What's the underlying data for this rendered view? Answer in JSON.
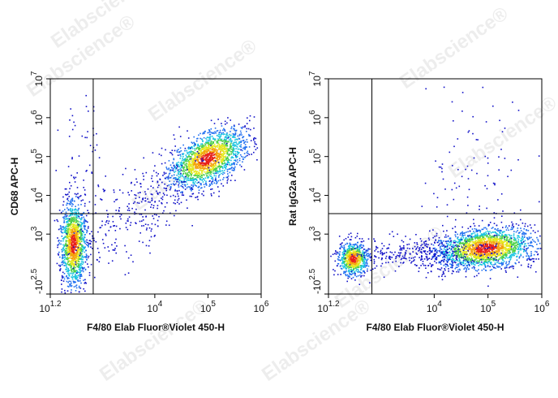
{
  "watermark": "Elabscience®",
  "chart_data": [
    {
      "type": "scatter",
      "xlabel": "F4/80 Elab Fluor®Violet 450-H",
      "ylabel": "CD68 APC-H",
      "xscale": "log",
      "yscale": "log",
      "xlim": [
        15.85,
        1000000
      ],
      "ylim": [
        -316.2,
        10000000
      ],
      "xticks": [
        {
          "value": 15.85,
          "label": "10",
          "sup": "1.2"
        },
        {
          "value": 10000,
          "label": "10",
          "sup": "4"
        },
        {
          "value": 100000,
          "label": "10",
          "sup": "5"
        },
        {
          "value": 1000000,
          "label": "10",
          "sup": "6"
        }
      ],
      "yticks": [
        {
          "value": -316.2,
          "label": "-10",
          "sup": "2.5"
        },
        {
          "value": 1000,
          "label": "10",
          "sup": "3"
        },
        {
          "value": 10000,
          "label": "10",
          "sup": "4"
        },
        {
          "value": 100000,
          "label": "10",
          "sup": "5"
        },
        {
          "value": 1000000,
          "label": "10",
          "sup": "6"
        },
        {
          "value": 10000000,
          "label": "10",
          "sup": "7"
        }
      ],
      "gate": {
        "x": 680,
        "y": 3400
      }
    },
    {
      "type": "scatter",
      "xlabel": "F4/80 Elab Fluor®Violet 450-H",
      "ylabel": "Rat IgG2a APC-H",
      "xscale": "log",
      "yscale": "log",
      "xlim": [
        15.85,
        1000000
      ],
      "ylim": [
        -316.2,
        10000000
      ],
      "xticks": [
        {
          "value": 15.85,
          "label": "10",
          "sup": "1.2"
        },
        {
          "value": 10000,
          "label": "10",
          "sup": "4"
        },
        {
          "value": 100000,
          "label": "10",
          "sup": "5"
        },
        {
          "value": 1000000,
          "label": "10",
          "sup": "6"
        }
      ],
      "yticks": [
        {
          "value": -316.2,
          "label": "-10",
          "sup": "2.5"
        },
        {
          "value": 1000,
          "label": "10",
          "sup": "3"
        },
        {
          "value": 10000,
          "label": "10",
          "sup": "4"
        },
        {
          "value": 100000,
          "label": "10",
          "sup": "5"
        },
        {
          "value": 1000000,
          "label": "10",
          "sup": "6"
        },
        {
          "value": 10000000,
          "label": "10",
          "sup": "7"
        }
      ],
      "gate": {
        "x": 680,
        "y": 3400
      }
    }
  ]
}
